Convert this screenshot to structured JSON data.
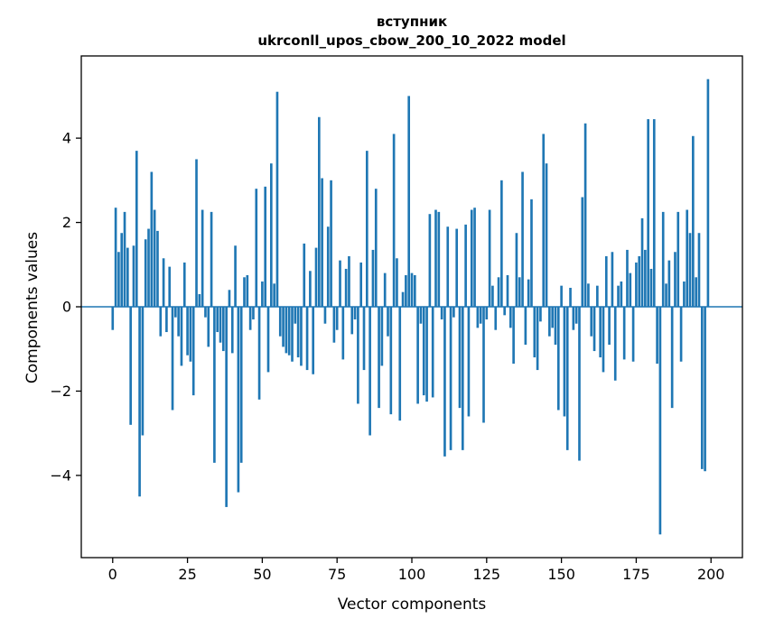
{
  "figure": {
    "title_line1": "вступник",
    "title_line2": "ukrconll_upos_cbow_200_10_2022 model",
    "xlabel": "Vector components",
    "ylabel": "Components values"
  },
  "chart_data": {
    "type": "bar",
    "title": "вступник ukrconll_upos_cbow_200_10_2022 model",
    "xlabel": "Vector components",
    "ylabel": "Components values",
    "legend": "none",
    "grid": false,
    "bar_color": "#1f77b4",
    "axes_color": "#000000",
    "xlim": [
      -10.5,
      210.5
    ],
    "ylim": [
      -5.95,
      5.95
    ],
    "xticks": {
      "values": [
        0,
        25,
        50,
        75,
        100,
        125,
        150,
        175,
        200
      ],
      "labels": [
        "0",
        "25",
        "50",
        "75",
        "100",
        "125",
        "150",
        "175",
        "200"
      ]
    },
    "yticks": {
      "values": [
        -4,
        -2,
        0,
        2,
        4
      ],
      "labels": [
        "−4",
        "−2",
        "0",
        "2",
        "4"
      ]
    },
    "x_start": 0,
    "values": [
      -0.55,
      2.35,
      1.3,
      1.75,
      2.25,
      1.4,
      -2.8,
      1.45,
      3.7,
      -4.5,
      -3.05,
      1.6,
      1.85,
      3.2,
      2.3,
      1.8,
      -0.7,
      1.15,
      -0.6,
      0.95,
      -2.45,
      -0.25,
      -0.7,
      -1.4,
      1.05,
      -1.15,
      -1.3,
      -2.1,
      3.5,
      0.3,
      2.3,
      -0.25,
      -0.95,
      2.25,
      -3.7,
      -0.6,
      -0.85,
      -1.05,
      -4.75,
      0.4,
      -1.1,
      1.45,
      -4.4,
      -3.7,
      0.7,
      0.75,
      -0.55,
      -0.3,
      2.8,
      -2.2,
      0.6,
      2.85,
      -1.55,
      3.4,
      0.55,
      5.1,
      -0.7,
      -0.95,
      -1.1,
      -1.15,
      -1.3,
      -0.4,
      -1.2,
      -1.4,
      1.5,
      -1.5,
      0.85,
      -1.6,
      1.4,
      4.5,
      3.05,
      -0.4,
      1.9,
      3.0,
      -0.85,
      -0.55,
      1.1,
      -1.25,
      0.9,
      1.2,
      -0.65,
      -0.3,
      -2.3,
      1.05,
      -1.5,
      3.7,
      -3.05,
      1.35,
      2.8,
      -2.4,
      -1.4,
      0.8,
      -0.7,
      -2.55,
      4.1,
      1.15,
      -2.7,
      0.35,
      0.75,
      5.0,
      0.8,
      0.75,
      -2.3,
      -0.4,
      -2.1,
      -2.25,
      2.2,
      -2.15,
      2.3,
      2.25,
      -0.3,
      -3.55,
      1.9,
      -3.4,
      -0.25,
      1.85,
      -2.4,
      -3.4,
      1.95,
      -2.6,
      2.3,
      2.35,
      -0.5,
      -0.4,
      -2.75,
      -0.3,
      2.3,
      0.5,
      -0.55,
      0.7,
      3.0,
      -0.2,
      0.75,
      -0.5,
      -1.35,
      1.75,
      0.7,
      3.2,
      -0.9,
      0.65,
      2.55,
      -1.2,
      -1.5,
      -0.35,
      4.1,
      3.4,
      -0.7,
      -0.5,
      -0.9,
      -2.45,
      0.5,
      -2.6,
      -3.4,
      0.45,
      -0.55,
      -0.4,
      -3.65,
      2.6,
      4.35,
      0.55,
      -0.7,
      -1.05,
      0.5,
      -1.2,
      -1.55,
      1.2,
      -0.9,
      1.3,
      -1.75,
      0.5,
      0.6,
      -1.25,
      1.35,
      0.8,
      -1.3,
      1.05,
      1.2,
      2.1,
      1.35,
      4.45,
      0.9,
      4.45,
      -1.35,
      -5.4,
      2.25,
      0.55,
      1.1,
      -2.4,
      1.3,
      2.25,
      -1.3,
      0.6,
      2.3,
      1.75,
      4.05,
      0.7,
      1.75,
      -3.85,
      -3.9,
      5.4
    ]
  }
}
